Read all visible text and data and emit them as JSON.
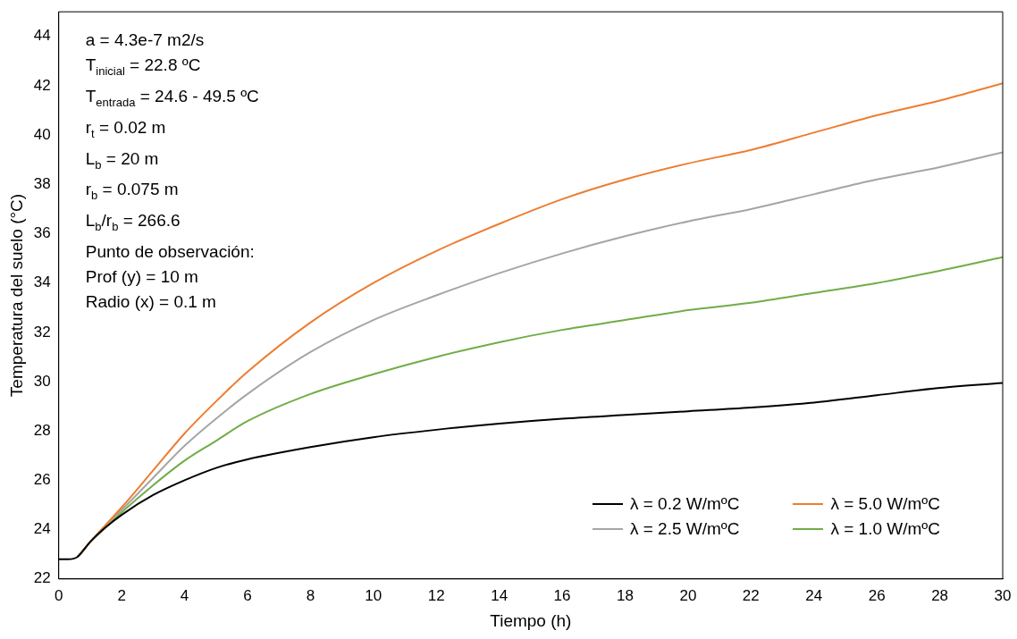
{
  "chart_data": {
    "type": "line",
    "xlabel": "Tiempo (h)",
    "ylabel": "Temperatura del suelo (°C)",
    "xlim": [
      0,
      30
    ],
    "xticks": [
      0,
      2,
      4,
      6,
      8,
      10,
      12,
      14,
      16,
      18,
      20,
      22,
      24,
      26,
      28,
      30
    ],
    "ylim": [
      22,
      45
    ],
    "yticks": [
      22,
      24,
      26,
      28,
      30,
      32,
      34,
      36,
      38,
      40,
      42,
      44
    ],
    "grid": false,
    "legend": "bottom right",
    "marker": "none",
    "line_style": "solid",
    "annotations": [
      "a = 4.3e-7 m2/s",
      "T$_{inicial}$ = 22.8 ºC",
      "T$_{entrada}$ = 24.6 - 49.5 ºC",
      "r$_{t}$ = 0.02 m",
      "L$_{b}$ = 20 m",
      "r$_{b}$ = 0.075 m",
      "L$_{b}$/r$_{b}$ = 266.6",
      "Punto de observación:",
      "Prof (y) = 10 m",
      "Radio (x) = 0.1 m"
    ],
    "x": [
      0,
      0.3,
      0.6,
      1,
      1.5,
      2,
      3,
      4,
      5,
      6,
      8,
      10,
      12,
      14,
      16,
      18,
      20,
      22,
      24,
      26,
      28,
      30
    ],
    "series": [
      {
        "name": "λ = 0.2 W/mºC",
        "color": "#000000",
        "values": [
          22.8,
          22.8,
          22.9,
          23.5,
          24.1,
          24.6,
          25.4,
          26.0,
          26.5,
          26.85,
          27.35,
          27.75,
          28.05,
          28.3,
          28.5,
          28.65,
          28.8,
          28.95,
          29.15,
          29.45,
          29.75,
          29.95
        ]
      },
      {
        "name": "λ = 5.0 W/mºC",
        "color": "#ed7d31",
        "values": [
          null,
          null,
          22.9,
          23.5,
          24.2,
          24.9,
          26.4,
          27.9,
          29.2,
          30.4,
          32.4,
          34.0,
          35.3,
          36.4,
          37.4,
          38.2,
          38.85,
          39.4,
          40.1,
          40.8,
          41.4,
          42.1
        ]
      },
      {
        "name": "λ = 2.5 W/mºC",
        "color": "#a5a5a5",
        "values": [
          null,
          null,
          22.9,
          23.5,
          24.2,
          24.8,
          26.1,
          27.4,
          28.5,
          29.5,
          31.2,
          32.5,
          33.5,
          34.4,
          35.2,
          35.9,
          36.5,
          37.0,
          37.6,
          38.2,
          38.7,
          39.3
        ]
      },
      {
        "name": "λ = 1.0 W/mºC",
        "color": "#70ad47",
        "values": [
          null,
          null,
          22.9,
          23.5,
          24.1,
          24.7,
          25.8,
          26.8,
          27.6,
          28.4,
          29.5,
          30.3,
          31.0,
          31.6,
          32.1,
          32.5,
          32.9,
          33.2,
          33.6,
          34.0,
          34.5,
          35.05
        ]
      }
    ]
  }
}
